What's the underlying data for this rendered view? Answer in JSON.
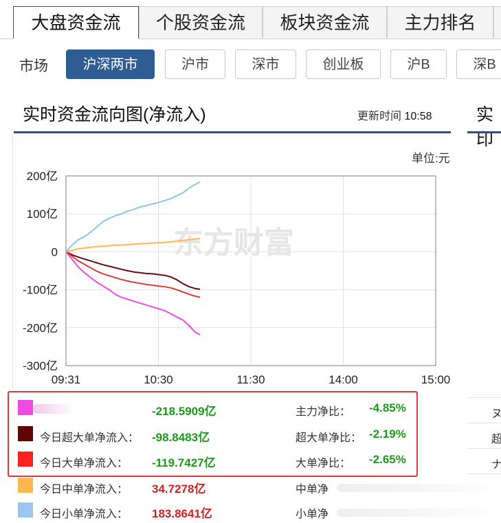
{
  "tabs": [
    {
      "label": "大盘资金流",
      "active": true
    },
    {
      "label": "个股资金流",
      "active": false
    },
    {
      "label": "板块资金流",
      "active": false
    },
    {
      "label": "主力排名",
      "active": false
    }
  ],
  "market": {
    "label": "市场",
    "options": [
      {
        "label": "沪深两市",
        "active": true
      },
      {
        "label": "沪市",
        "active": false
      },
      {
        "label": "深市",
        "active": false
      },
      {
        "label": "创业板",
        "active": false
      },
      {
        "label": "沪B",
        "active": false
      },
      {
        "label": "深B",
        "active": false
      }
    ]
  },
  "section": {
    "title": "实时资金流向图(净流入)",
    "update_label": "更新时间",
    "update_time": "10:58",
    "unit": "单位:元",
    "next_title_partial": "实印"
  },
  "watermark": "东方财富",
  "chart_data": {
    "type": "line",
    "x_ticks": [
      "09:31",
      "10:30",
      "11:30",
      "14:00",
      "15:00"
    ],
    "y_ticks": [
      "200亿",
      "100亿",
      "0",
      "-100亿",
      "-200亿",
      "-300亿"
    ],
    "ylim": [
      -300,
      200
    ],
    "unit": "亿",
    "x_minutes": [
      0,
      4,
      8,
      12,
      16,
      20,
      24,
      28,
      32,
      36,
      40,
      44,
      48,
      52,
      56,
      60,
      64,
      68,
      72,
      76,
      80,
      84,
      87
    ],
    "series": [
      {
        "key": "main",
        "color": "#f04be0",
        "values": [
          0,
          -20,
          -40,
          -55,
          -68,
          -80,
          -90,
          -100,
          -112,
          -120,
          -125,
          -130,
          -135,
          -140,
          -145,
          -150,
          -155,
          -163,
          -172,
          -180,
          -195,
          -212,
          -218.6
        ]
      },
      {
        "key": "super",
        "color": "#6b0a0a",
        "values": [
          0,
          -8,
          -14,
          -19,
          -24,
          -29,
          -34,
          -38,
          -42,
          -46,
          -50,
          -53,
          -55,
          -57,
          -58,
          -60,
          -62,
          -66,
          -74,
          -84,
          -92,
          -97,
          -98.8
        ]
      },
      {
        "key": "large",
        "color": "#e23a3a",
        "values": [
          0,
          -12,
          -24,
          -33,
          -42,
          -51,
          -58,
          -63,
          -68,
          -73,
          -77,
          -80,
          -83,
          -86,
          -88,
          -90,
          -92,
          -95,
          -100,
          -106,
          -112,
          -117,
          -119.7
        ]
      },
      {
        "key": "medium",
        "color": "#ffb84d",
        "values": [
          0,
          4,
          8,
          10,
          12,
          14,
          15,
          16,
          17,
          18,
          19,
          20,
          21,
          22,
          23,
          24,
          25,
          26,
          28,
          30,
          32,
          34,
          34.7
        ]
      },
      {
        "key": "small",
        "color": "#8ec5ec",
        "values": [
          0,
          18,
          32,
          40,
          52,
          65,
          80,
          88,
          95,
          100,
          107,
          112,
          118,
          122,
          126,
          130,
          135,
          140,
          148,
          156,
          168,
          178,
          183.9
        ]
      }
    ]
  },
  "stats": [
    {
      "label": "",
      "value": "-218.5909亿",
      "ratio_label": "主力净比：",
      "ratio": "-4.85%",
      "color": "#f04be0",
      "value_color": "green"
    },
    {
      "label": "今日超大单净流入：",
      "value": "-98.8483亿",
      "ratio_label": "超大单净比：",
      "ratio": "-2.19%",
      "color": "#5e0606",
      "value_color": "green"
    },
    {
      "label": "今日大单净流入：",
      "value": "-119.7427亿",
      "ratio_label": "大单净比：",
      "ratio": "-2.65%",
      "color": "#ff2020",
      "value_color": "green"
    },
    {
      "label": "今日中单净流入：",
      "value": "34.7278亿",
      "ratio_label": "中单净",
      "ratio": "",
      "color": "#ffb84d",
      "value_color": "red"
    },
    {
      "label": "今日小单净流入：",
      "value": "183.8641亿",
      "ratio_label": "小单净",
      "ratio": "",
      "color": "#9cc8ef",
      "value_color": "red"
    }
  ],
  "right_column_chars": [
    "ヌ",
    "超",
    "ナ"
  ]
}
